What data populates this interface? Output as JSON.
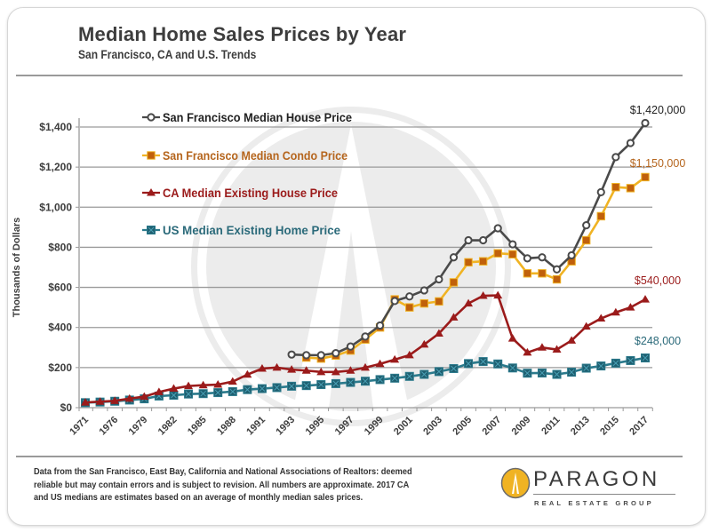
{
  "header": {
    "title": "Median Home Sales Prices by Year",
    "subtitle": "San Francisco, CA and U.S. Trends"
  },
  "chart_data": {
    "type": "line",
    "title": "Median Home Sales Prices by Year",
    "subtitle": "San Francisco, CA and U.S. Trends",
    "xlabel": "",
    "ylabel": "Thousands of Dollars",
    "ylim": [
      0,
      1400
    ],
    "yticks": [
      0,
      200,
      400,
      600,
      800,
      1000,
      1200,
      1400
    ],
    "ytick_labels": [
      "$0",
      "$200",
      "$400",
      "$600",
      "$800",
      "$1,000",
      "$1,200",
      "$1,400"
    ],
    "grid": true,
    "x": [
      "1971",
      "1973",
      "1976",
      "1978",
      "1979",
      "1981",
      "1982",
      "1984",
      "1985",
      "1987",
      "1988",
      "1990",
      "1991",
      "1992",
      "1993",
      "1994",
      "1995",
      "1996",
      "1997",
      "1998",
      "1999",
      "2000",
      "2001",
      "2002",
      "2003",
      "2004",
      "2005",
      "2006",
      "2007",
      "2008",
      "2009",
      "2010",
      "2011",
      "2012",
      "2013",
      "2014",
      "2015",
      "2016",
      "2017"
    ],
    "xtick_labels": [
      "1971",
      "1976",
      "1979",
      "1982",
      "1985",
      "1988",
      "1991",
      "1993",
      "1995",
      "1997",
      "1999",
      "2001",
      "2003",
      "2005",
      "2007",
      "2009",
      "2011",
      "2013",
      "2015",
      "2017"
    ],
    "xtick_label_indices": [
      0,
      2,
      4,
      6,
      8,
      10,
      12,
      14,
      16,
      18,
      20,
      22,
      24,
      26,
      28,
      30,
      32,
      34,
      36,
      38
    ],
    "legend_position": "top-left",
    "series": [
      {
        "name": "San Francisco Median House Price",
        "color": "#4a4a4a",
        "marker": "circle-open",
        "start_index": 14,
        "values": [
          265,
          262,
          262,
          272,
          305,
          355,
          410,
          532,
          555,
          585,
          640,
          750,
          835,
          835,
          895,
          815,
          745,
          750,
          690,
          760,
          910,
          1075,
          1250,
          1320,
          1420
        ],
        "end_label": "$1,420,000",
        "end_label_color": "#222222"
      },
      {
        "name": "San Francisco Median Condo Price",
        "color": "#f0b323",
        "marker_color": "#c0600b",
        "label_color": "#b5651d",
        "marker": "square",
        "start_index": 15,
        "values": [
          250,
          245,
          260,
          285,
          340,
          400,
          540,
          500,
          520,
          530,
          625,
          725,
          730,
          770,
          765,
          670,
          670,
          640,
          730,
          835,
          955,
          1100,
          1095,
          1150
        ],
        "end_label": "$1,150,000",
        "end_label_color": "#b5651d"
      },
      {
        "name": "CA Median Existing House Price",
        "color": "#9b1b1b",
        "label_color": "#9b1b1b",
        "marker": "triangle",
        "start_index": 0,
        "values": [
          26,
          30,
          34,
          45,
          55,
          78,
          95,
          108,
          112,
          115,
          130,
          165,
          195,
          200,
          190,
          185,
          178,
          178,
          185,
          200,
          218,
          240,
          262,
          315,
          370,
          450,
          520,
          558,
          560,
          345,
          275,
          300,
          290,
          335,
          405,
          445,
          475,
          500,
          540
        ],
        "end_label": "$540,000",
        "end_label_color": "#9b1b1b"
      },
      {
        "name": "US Median Existing Home Price",
        "color": "#2b7a8c",
        "marker_color": "#1f5f70",
        "label_color": "#2b6a7a",
        "marker": "square-x",
        "start_index": 0,
        "values": [
          25,
          28,
          32,
          38,
          44,
          58,
          62,
          68,
          70,
          75,
          80,
          90,
          95,
          100,
          107,
          110,
          115,
          120,
          126,
          132,
          140,
          147,
          156,
          166,
          180,
          195,
          220,
          230,
          218,
          198,
          172,
          173,
          166,
          177,
          197,
          208,
          222,
          235,
          248
        ],
        "end_label": "$248,000",
        "end_label_color": "#2b6a7a"
      }
    ]
  },
  "footer": {
    "note_lines": [
      "Data from the San Francisco, East Bay, California and National Associations of Realtors:  deemed",
      "reliable but may contain errors and is subject to revision. All numbers are approximate. 2017 CA",
      "and US medians are estimates based on an average of monthly median sales prices."
    ],
    "brand_name": "PARAGON",
    "brand_tagline": "REAL ESTATE GROUP",
    "brand_color": "#f0b323"
  }
}
